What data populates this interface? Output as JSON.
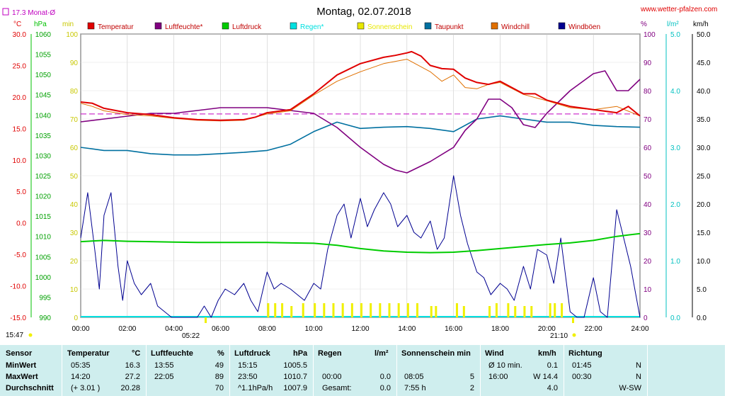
{
  "site": "www.wetter-pfalzen.com",
  "monthavg": "17.3 Monat-Ø",
  "title": "Montag, 02.07.2018",
  "units": {
    "c": "°C",
    "hpa": "hPa",
    "min": "min",
    "pct": "%",
    "lm2": "l/m²",
    "kmh": "km/h"
  },
  "legend": [
    {
      "label": "Temperatur",
      "color": "#e00000"
    },
    {
      "label": "Luftfeuchte*",
      "color": "#800080"
    },
    {
      "label": "Luftdruck",
      "color": "#00cc00"
    },
    {
      "label": "Regen*",
      "color": "#00e0e0"
    },
    {
      "label": "Sonnenschein",
      "color": "#e8e800"
    },
    {
      "label": "Taupunkt",
      "color": "#0070a0"
    },
    {
      "label": "Windchill",
      "color": "#e07000"
    },
    {
      "label": "Windböen",
      "color": "#000090"
    }
  ],
  "markers": {
    "sunrise": "05:22",
    "sunset": "21:10",
    "left_time": "15:47"
  },
  "chart_data": {
    "type": "line",
    "title": "Montag, 02.07.2018",
    "x_ticks": [
      "00:00",
      "02:00",
      "04:00",
      "06:00",
      "08:00",
      "10:00",
      "12:00",
      "14:00",
      "16:00",
      "18:00",
      "20:00",
      "22:00",
      "24:00"
    ],
    "axes": {
      "temp_c": {
        "ticks": [
          "30.0",
          "25.0",
          "20.0",
          "15.0",
          "10.0",
          "5.0",
          "0.0",
          "-5.0",
          "-10.0",
          "-15.0"
        ],
        "range": [
          -15,
          30
        ]
      },
      "pressure_hpa": {
        "ticks": [
          "1060",
          "1055",
          "1050",
          "1045",
          "1040",
          "1035",
          "1030",
          "1025",
          "1020",
          "1015",
          "1010",
          "1005",
          "1000",
          "995",
          "990"
        ],
        "range": [
          990,
          1060
        ]
      },
      "sun_min": {
        "ticks": [
          "100",
          "90",
          "80",
          "70",
          "60",
          "50",
          "40",
          "30",
          "20",
          "10",
          "0"
        ],
        "range": [
          0,
          100
        ]
      },
      "humidity_pct": {
        "ticks": [
          "100",
          "90",
          "80",
          "70",
          "60",
          "50",
          "40",
          "30",
          "20",
          "10",
          "0"
        ],
        "range": [
          0,
          100
        ]
      },
      "rain_lm2": {
        "ticks": [
          "5.0",
          "4.0",
          "3.0",
          "2.0",
          "1.0",
          "0.0"
        ],
        "range": [
          0,
          5
        ]
      },
      "wind_kmh": {
        "ticks": [
          "50.0",
          "45.0",
          "40.0",
          "35.0",
          "30.0",
          "25.0",
          "20.0",
          "15.0",
          "10.0",
          "5.0",
          "0.0"
        ],
        "range": [
          0,
          50
        ]
      }
    },
    "month_avg_temp": 17.3,
    "series": [
      {
        "name": "Temperatur",
        "axis": "temp_c",
        "color": "#e00000",
        "x": [
          0,
          0.5,
          1,
          2,
          3,
          4,
          5,
          6,
          7,
          7.5,
          8,
          9,
          10,
          11,
          12,
          13,
          13.5,
          14,
          14.2,
          14.6,
          15,
          15.5,
          16,
          16.5,
          17,
          17.5,
          18,
          19,
          19.5,
          20,
          21,
          22,
          23,
          23.5,
          24
        ],
        "y": [
          19.2,
          19.0,
          18.2,
          17.5,
          17.2,
          16.7,
          16.4,
          16.3,
          16.4,
          16.8,
          17.5,
          18.0,
          20.5,
          23.5,
          25.3,
          26.3,
          26.6,
          27.0,
          27.2,
          26.5,
          25.0,
          24.5,
          24.4,
          23.0,
          22.3,
          22.0,
          22.5,
          20.5,
          20.5,
          19.5,
          18.5,
          18.0,
          17.5,
          18.5,
          17.0
        ]
      },
      {
        "name": "Windchill",
        "axis": "temp_c",
        "color": "#e07000",
        "x": [
          0,
          0.5,
          1,
          2,
          3,
          4,
          5,
          6,
          7,
          8,
          9,
          10,
          11,
          12,
          13,
          14,
          14.5,
          15,
          15.5,
          16,
          16.5,
          17,
          17.5,
          18,
          19,
          20,
          21,
          22,
          23,
          24
        ],
        "y": [
          19.0,
          18.5,
          17.8,
          17.2,
          17.0,
          16.6,
          16.3,
          16.2,
          16.3,
          17.3,
          17.8,
          20.3,
          22.5,
          24.0,
          25.3,
          26.0,
          25.0,
          24.0,
          22.5,
          23.5,
          21.5,
          21.3,
          22.0,
          22.3,
          20.4,
          19.4,
          18.3,
          18.0,
          18.5,
          17.0
        ]
      },
      {
        "name": "Luftfeuchte*",
        "axis": "humidity_pct",
        "color": "#800080",
        "x": [
          0,
          1,
          2,
          3,
          4,
          5,
          6,
          7,
          8,
          9,
          10,
          11,
          12,
          13,
          13.5,
          14,
          14.5,
          15,
          16,
          16.5,
          17,
          17.5,
          18,
          18.5,
          19,
          19.5,
          20,
          21,
          22,
          22.5,
          23,
          23.5,
          24
        ],
        "y": [
          69,
          70,
          71,
          72,
          72,
          73,
          74,
          74,
          74,
          73,
          72,
          67,
          60,
          54,
          52,
          51,
          53,
          55,
          60,
          66,
          70,
          77,
          77,
          74,
          68,
          67,
          72,
          80,
          86,
          87,
          80,
          80,
          84
        ]
      },
      {
        "name": "Taupunkt",
        "axis": "temp_c",
        "color": "#0070a0",
        "x": [
          0,
          1,
          2,
          3,
          4,
          5,
          6,
          7,
          8,
          9,
          10,
          11,
          12,
          13,
          14,
          15,
          16,
          17,
          18,
          19,
          20,
          21,
          22,
          23,
          24
        ],
        "y": [
          12.0,
          11.5,
          11.5,
          11.0,
          10.8,
          10.8,
          11.0,
          11.2,
          11.5,
          12.5,
          14.5,
          16.0,
          15.0,
          15.2,
          15.3,
          15.0,
          14.5,
          16.5,
          17.0,
          16.5,
          16.0,
          16.0,
          15.5,
          15.3,
          15.2
        ]
      },
      {
        "name": "Luftdruck",
        "axis": "pressure_hpa",
        "color": "#00cc00",
        "x": [
          0,
          1,
          2,
          3,
          4,
          5,
          6,
          7,
          8,
          9,
          10,
          11,
          12,
          13,
          14,
          15,
          16,
          17,
          18,
          19,
          20,
          21,
          22,
          23,
          24
        ],
        "y": [
          1008.7,
          1009.0,
          1008.8,
          1008.7,
          1008.6,
          1008.5,
          1008.5,
          1008.5,
          1008.5,
          1008.4,
          1008.3,
          1007.8,
          1007.0,
          1006.4,
          1006.1,
          1006.0,
          1006.1,
          1006.5,
          1007.0,
          1007.5,
          1008.0,
          1008.4,
          1009.0,
          1010.0,
          1010.7
        ]
      },
      {
        "name": "Windböen",
        "axis": "wind_kmh",
        "color": "#000090",
        "x": [
          0,
          0.3,
          0.6,
          0.8,
          1,
          1.3,
          1.6,
          1.8,
          2,
          2.3,
          2.6,
          3,
          3.3,
          3.6,
          3.9,
          4.2,
          4.6,
          5,
          5.3,
          5.6,
          5.9,
          6.2,
          6.6,
          7,
          7.3,
          7.6,
          8,
          8.3,
          8.6,
          9,
          9.3,
          9.6,
          10,
          10.3,
          10.6,
          11,
          11.3,
          11.6,
          12,
          12.3,
          12.6,
          13,
          13.3,
          13.6,
          14,
          14.3,
          14.6,
          15,
          15.3,
          15.6,
          16,
          16.3,
          16.6,
          17,
          17.3,
          17.6,
          18,
          18.3,
          18.6,
          19,
          19.3,
          19.6,
          20,
          20.3,
          20.6,
          21,
          21.3,
          21.6,
          22,
          22.3,
          22.6,
          23,
          23.3,
          23.6,
          24
        ],
        "y": [
          14,
          22,
          12,
          5,
          18,
          22,
          9,
          3,
          10,
          6,
          4,
          6,
          2,
          1,
          0,
          0,
          0,
          0,
          2,
          0,
          3,
          5,
          4,
          6,
          3,
          1,
          8,
          5,
          6,
          5,
          4,
          3,
          6,
          5,
          12,
          18,
          20,
          14,
          21,
          16,
          19,
          22,
          20,
          16,
          18,
          15,
          14,
          17,
          12,
          14,
          25,
          18,
          13,
          8,
          7,
          4,
          6,
          5,
          3,
          9,
          5,
          12,
          11,
          6,
          14,
          1,
          0,
          0,
          7,
          1,
          0,
          19,
          14,
          9,
          0
        ]
      }
    ],
    "sunshine_min": {
      "x": [
        8.0,
        8.3,
        8.6,
        9.0,
        9.5,
        10.0,
        10.4,
        10.8,
        11.2,
        11.6,
        12.0,
        12.4,
        12.8,
        13.2,
        13.6,
        14.0,
        14.4,
        15.0,
        15.2,
        16.1,
        16.4,
        17.5,
        17.8,
        18.3,
        18.6,
        19.0,
        19.3,
        20.1,
        20.3,
        20.6
      ],
      "y": [
        5,
        5,
        5,
        4,
        5,
        5,
        5,
        5,
        5,
        5,
        5,
        5,
        5,
        5,
        5,
        5,
        5,
        4,
        4,
        5,
        4,
        4,
        5,
        5,
        4,
        4,
        4,
        5,
        5,
        5
      ]
    }
  },
  "table": {
    "headers": {
      "sensor": "Sensor",
      "temp": "Temperatur",
      "temp_u": "°C",
      "hum": "Luftfeuchte",
      "hum_u": "%",
      "press": "Luftdruck",
      "press_u": "hPa",
      "rain": "Regen",
      "rain_u": "l/m²",
      "sun": "Sonnenschein min",
      "wind": "Wind",
      "wind_u": "km/h",
      "dir": "Richtung"
    },
    "rows": [
      {
        "label": "MinWert",
        "t_time": "05:35",
        "t_val": "16.3",
        "h_time": "13:55",
        "h_val": "49",
        "p_time": "15:15",
        "p_val": "1005.5",
        "r_time": "",
        "r_val": "",
        "s_time": "",
        "s_val": "",
        "w_time": "Ø 10 min.",
        "w_val": "0.1",
        "d_time": "01:45",
        "d_val": "N"
      },
      {
        "label": "MaxWert",
        "t_time": "14:20",
        "t_val": "27.2",
        "h_time": "22:05",
        "h_val": "89",
        "p_time": "23:50",
        "p_val": "1010.7",
        "r_time": "00:00",
        "r_val": "0.0",
        "s_time": "08:05",
        "s_val": "5",
        "w_time": "16:00",
        "w_val": "W 14.4",
        "d_time": "00:30",
        "d_val": "N"
      },
      {
        "label": "Durchschnitt",
        "t_time": "(+ 3.01 )",
        "t_val": "20.28",
        "h_time": "",
        "h_val": "70",
        "p_time": "^1.1hPa/h",
        "p_val": "1007.9",
        "r_time": "Gesamt:",
        "r_val": "0.0",
        "s_time": "7:55 h",
        "s_val": "2",
        "w_time": "",
        "w_val": "4.0",
        "d_time": "",
        "d_val": "W-SW"
      }
    ]
  }
}
